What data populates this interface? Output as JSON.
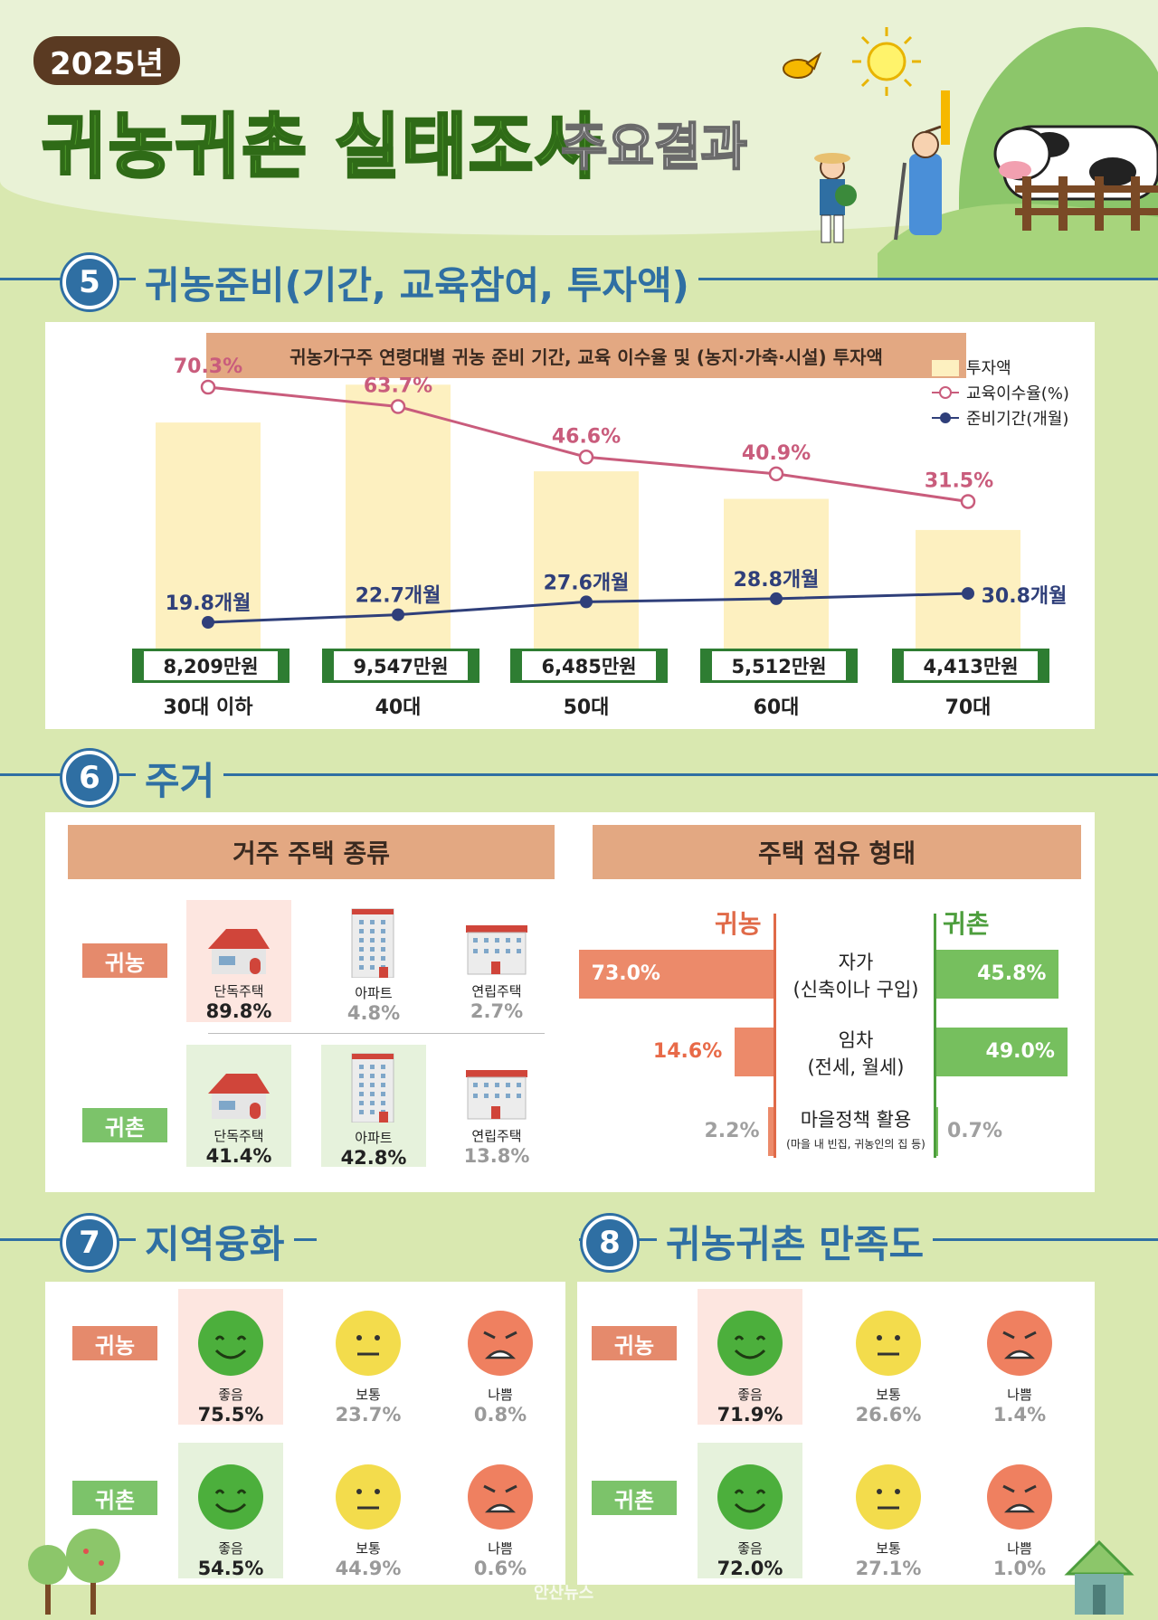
{
  "header": {
    "year": "2025년",
    "title": "귀농귀촌 실태조사",
    "subtitle": "주요결과"
  },
  "sections": {
    "s5": {
      "num": "5",
      "title": "귀농준비(기간, 교육참여, 투자액)"
    },
    "s6": {
      "num": "6",
      "title": "주거"
    },
    "s7": {
      "num": "7",
      "title": "지역융화"
    },
    "s8": {
      "num": "8",
      "title": "귀농귀촌 만족도"
    }
  },
  "chart_data": {
    "type": "bar",
    "title": "귀농가구주 연령대별 귀농 준비 기간, 교육 이수율 및 (농지·가축·시설) 투자액",
    "categories": [
      "30대 이하",
      "40대",
      "50대",
      "60대",
      "70대"
    ],
    "legend": [
      "투자액",
      "교육이수율(%)",
      "준비기간(개월)"
    ],
    "legend_position": "top-right",
    "series": [
      {
        "name": "투자액",
        "type": "bar",
        "values": [
          8209,
          9547,
          6485,
          5512,
          4413
        ],
        "labels": [
          "8,209만원",
          "9,547만원",
          "6,485만원",
          "5,512만원",
          "4,413만원"
        ],
        "color": "#fdf0c0"
      },
      {
        "name": "교육이수율(%)",
        "type": "line",
        "values": [
          70.3,
          63.7,
          46.6,
          40.9,
          31.5
        ],
        "labels": [
          "70.3%",
          "63.7%",
          "46.6%",
          "40.9%",
          "31.5%"
        ],
        "color": "#c95c7c"
      },
      {
        "name": "준비기간(개월)",
        "type": "line",
        "values": [
          19.8,
          22.7,
          27.6,
          28.8,
          30.8
        ],
        "labels": [
          "19.8개월",
          "22.7개월",
          "27.6개월",
          "28.8개월",
          "30.8개월"
        ],
        "color": "#2f3f7a"
      }
    ]
  },
  "housing_type": {
    "title": "거주 주택 종류",
    "farm_tag": "귀농",
    "rural_tag": "귀촌",
    "farm": [
      {
        "label": "단독주택",
        "value": "89.8%",
        "icon": "house-icon"
      },
      {
        "label": "아파트",
        "value": "4.8%",
        "icon": "apartment-icon"
      },
      {
        "label": "연립주택",
        "value": "2.7%",
        "icon": "rowhouse-icon"
      }
    ],
    "rural": [
      {
        "label": "단독주택",
        "value": "41.4%",
        "icon": "house-icon"
      },
      {
        "label": "아파트",
        "value": "42.8%",
        "icon": "apartment-icon"
      },
      {
        "label": "연립주택",
        "value": "13.8%",
        "icon": "rowhouse-icon"
      }
    ]
  },
  "tenure": {
    "title": "주택 점유 형태",
    "farm_head": "귀농",
    "rural_head": "귀촌",
    "rows": [
      {
        "label1": "자가",
        "label2": "(신축이나 구입)",
        "farm": 73.0,
        "farm_label": "73.0%",
        "rural": 45.8,
        "rural_label": "45.8%"
      },
      {
        "label1": "임차",
        "label2": "(전세, 월세)",
        "farm": 14.6,
        "farm_label": "14.6%",
        "rural": 49.0,
        "rural_label": "49.0%"
      },
      {
        "label1": "마을정책 활용",
        "label2": "(마을 내 빈집, 귀농인의 집 등)",
        "farm": 2.2,
        "farm_label": "2.2%",
        "rural": 0.7,
        "rural_label": "0.7%"
      }
    ]
  },
  "integration": {
    "farm_tag": "귀농",
    "rural_tag": "귀촌",
    "farm": [
      {
        "label": "좋음",
        "value": "75.5%"
      },
      {
        "label": "보통",
        "value": "23.7%"
      },
      {
        "label": "나쁨",
        "value": "0.8%"
      }
    ],
    "rural": [
      {
        "label": "좋음",
        "value": "54.5%"
      },
      {
        "label": "보통",
        "value": "44.9%"
      },
      {
        "label": "나쁨",
        "value": "0.6%"
      }
    ]
  },
  "satisfaction": {
    "farm_tag": "귀농",
    "rural_tag": "귀촌",
    "farm": [
      {
        "label": "좋음",
        "value": "71.9%"
      },
      {
        "label": "보통",
        "value": "26.6%"
      },
      {
        "label": "나쁨",
        "value": "1.4%"
      }
    ],
    "rural": [
      {
        "label": "좋음",
        "value": "72.0%"
      },
      {
        "label": "보통",
        "value": "27.1%"
      },
      {
        "label": "나쁨",
        "value": "1.0%"
      }
    ]
  },
  "watermark": "안산뉴스",
  "colors": {
    "good": "#4caf3c",
    "neutral": "#f3dc4c",
    "bad": "#ef8060",
    "farm": "#e58a6c",
    "rural": "#7cc36a",
    "section": "#2f6fa3"
  }
}
